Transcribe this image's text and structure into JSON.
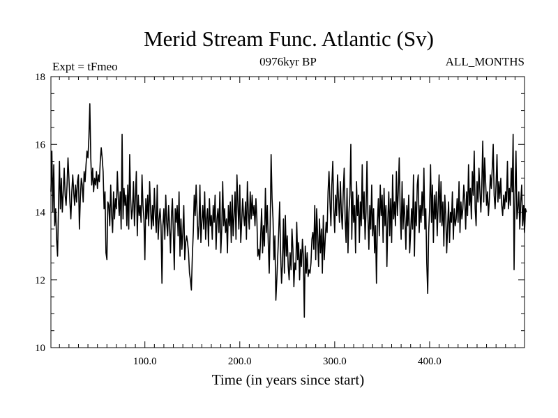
{
  "chart_data": {
    "type": "line",
    "title": "Merid Stream Func. Atlantic (Sv)",
    "subtitle_left": "Expt = tFmeo",
    "subtitle_center": "0976kyr BP",
    "subtitle_right": "ALL_MONTHS",
    "xlabel": "Time (in years since start)",
    "ylabel": "",
    "xlim": [
      1,
      500
    ],
    "ylim": [
      10,
      18
    ],
    "x_ticks": [
      100,
      200,
      300,
      400
    ],
    "x_tick_labels": [
      "100.0",
      "200.0",
      "300.0",
      "400.0"
    ],
    "y_ticks": [
      10,
      12,
      14,
      16,
      18
    ],
    "y_tick_labels": [
      "10",
      "12",
      "14",
      "16",
      "18"
    ],
    "grid": false,
    "line_color": "#000000",
    "series": [
      {
        "name": "Merid Stream Func. Atlantic",
        "x_start": 1,
        "x_step": 1,
        "values": [
          14.6,
          15.8,
          14.0,
          15.4,
          13.6,
          14.1,
          13.2,
          12.7,
          14.2,
          15.5,
          14.1,
          15.0,
          14.0,
          14.6,
          15.3,
          14.5,
          14.2,
          14.8,
          15.6,
          15.0,
          14.3,
          13.8,
          14.6,
          15.1,
          14.6,
          14.2,
          14.8,
          14.3,
          14.9,
          15.1,
          13.5,
          14.4,
          15.0,
          14.8,
          14.3,
          15.2,
          14.9,
          15.4,
          15.8,
          15.6,
          16.2,
          17.2,
          15.6,
          14.8,
          15.3,
          14.6,
          15.0,
          14.8,
          15.2,
          14.7,
          15.1,
          14.9,
          15.5,
          15.9,
          15.6,
          15.2,
          14.1,
          14.6,
          12.8,
          12.6,
          14.3,
          14.2,
          13.6,
          14.8,
          13.9,
          13.4,
          14.6,
          13.8,
          14.4,
          14.1,
          15.2,
          14.4,
          13.9,
          14.6,
          13.5,
          16.3,
          13.8,
          14.7,
          14.2,
          14.5,
          13.6,
          14.8,
          13.5,
          15.7,
          14.4,
          13.8,
          14.1,
          14.9,
          13.6,
          14.4,
          15.2,
          13.3,
          14.5,
          13.9,
          14.2,
          13.7,
          15.1,
          14.2,
          13.8,
          12.6,
          14.4,
          13.8,
          14.5,
          13.6,
          14.9,
          14.1,
          13.5,
          14.2,
          13.6,
          14.7,
          13.9,
          13.4,
          14.8,
          13.2,
          13.8,
          14.1,
          13.6,
          11.9,
          13.6,
          14.1,
          13.2,
          14.5,
          13.7,
          13.3,
          14.2,
          13.6,
          12.8,
          13.9,
          14.4,
          13.4,
          12.3,
          14.1,
          13.7,
          14.2,
          13.3,
          14.6,
          12.7,
          13.8,
          12.9,
          13.4,
          14.2,
          12.6,
          13.1,
          13.3,
          13.1,
          12.8,
          12.2,
          12.0,
          11.7,
          12.7,
          13.4,
          14.5,
          13.9,
          14.8,
          14.0,
          13.2,
          13.6,
          14.8,
          13.1,
          13.7,
          14.2,
          13.5,
          14.6,
          13.2,
          13.8,
          14.1,
          13.0,
          14.4,
          13.6,
          13.9,
          13.2,
          14.2,
          13.7,
          14.5,
          12.9,
          13.8,
          14.1,
          13.4,
          14.6,
          12.8,
          13.5,
          14.9,
          13.6,
          14.1,
          13.4,
          13.8,
          12.8,
          14.2,
          13.6,
          14.3,
          13.1,
          14.5,
          13.3,
          13.9,
          14.6,
          13.2,
          15.1,
          14.2,
          13.5,
          14.8,
          13.1,
          13.7,
          14.4,
          13.9,
          13.6,
          14.3,
          13.2,
          14.9,
          14.0,
          13.5,
          14.6,
          13.8,
          14.5,
          13.9,
          14.2,
          13.6,
          14.4,
          13.8,
          12.7,
          12.9,
          12.6,
          13.3,
          14.1,
          12.8,
          13.6,
          13.0,
          14.7,
          13.4,
          14.2,
          13.1,
          12.2,
          13.6,
          15.7,
          14.4,
          13.8,
          12.6,
          13.3,
          11.4,
          12.0,
          12.7,
          13.4,
          14.3,
          12.8,
          11.9,
          12.5,
          13.8,
          12.2,
          13.9,
          12.7,
          13.3,
          12.4,
          12.0,
          12.8,
          12.3,
          13.5,
          12.9,
          11.8,
          12.5,
          12.3,
          13.7,
          12.6,
          13.1,
          12.0,
          12.9,
          12.4,
          13.2,
          12.7,
          10.9,
          13.0,
          12.2,
          12.8,
          12.1,
          12.3,
          12.2,
          12.5,
          13.2,
          13.4,
          12.9,
          14.2,
          12.6,
          14.1,
          13.3,
          12.4,
          13.8,
          12.8,
          13.5,
          12.2,
          13.9,
          12.6,
          13.2,
          13.7,
          13.4,
          14.6,
          15.2,
          14.3,
          13.6,
          14.8,
          15.5,
          14.1,
          13.4,
          14.5,
          13.9,
          15.1,
          14.4,
          13.7,
          14.9,
          14.0,
          13.5,
          14.6,
          15.3,
          13.8,
          13.1,
          14.7,
          12.8,
          14.0,
          14.5,
          16.0,
          13.2,
          14.6,
          13.7,
          14.2,
          12.8,
          14.9,
          13.9,
          14.5,
          13.1,
          14.3,
          13.6,
          15.4,
          13.8,
          14.6,
          13.2,
          14.0,
          15.5,
          13.9,
          12.9,
          14.2,
          13.5,
          14.8,
          13.3,
          14.1,
          12.8,
          13.6,
          11.9,
          13.7,
          14.4,
          13.3,
          14.8,
          13.9,
          14.5,
          13.1,
          14.7,
          13.6,
          14.2,
          12.4,
          13.8,
          14.6,
          13.3,
          14.4,
          13.1,
          15.1,
          13.8,
          14.3,
          13.6,
          15.2,
          13.9,
          14.6,
          15.6,
          14.0,
          13.2,
          14.9,
          13.5,
          14.4,
          13.8,
          12.9,
          14.2,
          13.6,
          14.5,
          12.8,
          13.4,
          14.1,
          13.5,
          15.1,
          12.7,
          14.3,
          13.6,
          14.8,
          15.1,
          13.4,
          14.2,
          13.7,
          14.6,
          13.9,
          15.3,
          13.5,
          14.1,
          12.5,
          11.6,
          13.4,
          14.1,
          15.4,
          13.7,
          14.8,
          13.1,
          14.5,
          13.8,
          14.6,
          13.3,
          14.2,
          15.1,
          13.7,
          14.9,
          13.6,
          14.3,
          13.0,
          14.5,
          13.9,
          12.8,
          13.6,
          14.3,
          13.1,
          14.0,
          13.7,
          14.6,
          13.2,
          14.1,
          13.6,
          13.8,
          14.4,
          13.7,
          14.9,
          13.4,
          14.3,
          13.8,
          14.1,
          14.8,
          14.4,
          13.5,
          14.6,
          13.9,
          15.4,
          14.2,
          14.7,
          13.8,
          15.2,
          14.5,
          15.8,
          14.1,
          13.6,
          14.9,
          14.3,
          15.3,
          14.6,
          14.0,
          14.8,
          16.1,
          14.3,
          15.6,
          14.9,
          14.2,
          14.6,
          13.9,
          14.4,
          15.1,
          14.7,
          15.3,
          16.0,
          14.5,
          14.1,
          14.8,
          15.7,
          14.3,
          14.9,
          14.4,
          15.0,
          14.2,
          13.9,
          14.5,
          14.1,
          14.6,
          14.3,
          15.5,
          14.1,
          14.7,
          14.2,
          15.3,
          14.6,
          16.3,
          12.3,
          14.5,
          15.8,
          13.8,
          14.1,
          14.6,
          13.5,
          14.3,
          14.8,
          13.6,
          14.2,
          13.4,
          14.1,
          14.0
        ]
      }
    ]
  }
}
